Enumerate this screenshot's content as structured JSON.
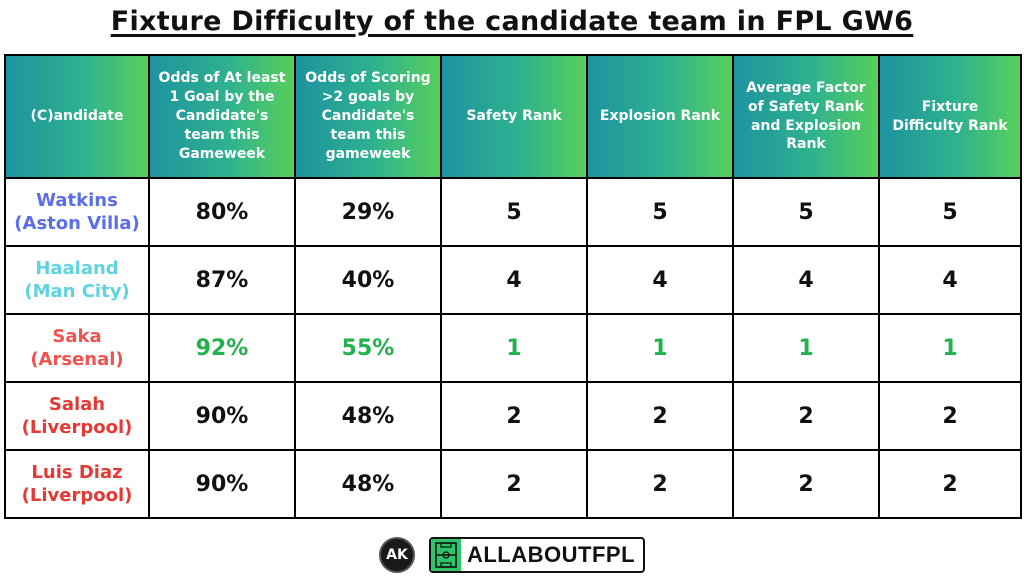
{
  "title": "Fixture Difficulty of the candidate team in FPL GW6",
  "headers": [
    "(C)andidate",
    "Odds of At least 1 Goal by the Candidate's team this Gameweek",
    "Odds of Scoring >2 goals by Candidate's team this gameweek",
    "Safety Rank",
    "Explosion Rank",
    "Average Factor of Safety Rank and Explosion Rank",
    "Fixture Difficulty Rank"
  ],
  "rows": [
    {
      "name": "Watkins",
      "team": "(Aston Villa)",
      "name_color": "#5b6ee8",
      "odds1": "80%",
      "odds2": "29%",
      "safety": "5",
      "explosion": "5",
      "average": "5",
      "fdr": "5",
      "highlight": false
    },
    {
      "name": "Haaland",
      "team": "(Man City)",
      "name_color": "#5fd3e0",
      "odds1": "87%",
      "odds2": "40%",
      "safety": "4",
      "explosion": "4",
      "average": "4",
      "fdr": "4",
      "highlight": false
    },
    {
      "name": "Saka",
      "team": "(Arsenal)",
      "name_color": "#ef5350",
      "odds1": "92%",
      "odds2": "55%",
      "safety": "1",
      "explosion": "1",
      "average": "1",
      "fdr": "1",
      "highlight": true
    },
    {
      "name": "Salah",
      "team": "(Liverpool)",
      "name_color": "#e53935",
      "odds1": "90%",
      "odds2": "48%",
      "safety": "2",
      "explosion": "2",
      "average": "2",
      "fdr": "2",
      "highlight": false
    },
    {
      "name": "Luis Diaz",
      "team": "(Liverpool)",
      "name_color": "#e53935",
      "odds1": "90%",
      "odds2": "48%",
      "safety": "2",
      "explosion": "2",
      "average": "2",
      "fdr": "2",
      "highlight": false
    }
  ],
  "highlight_color": "#22b24c",
  "footer": {
    "ak_logo": "AK",
    "brand": "ALLABOUTFPL",
    "brand_icon": "football-pitch-icon"
  }
}
